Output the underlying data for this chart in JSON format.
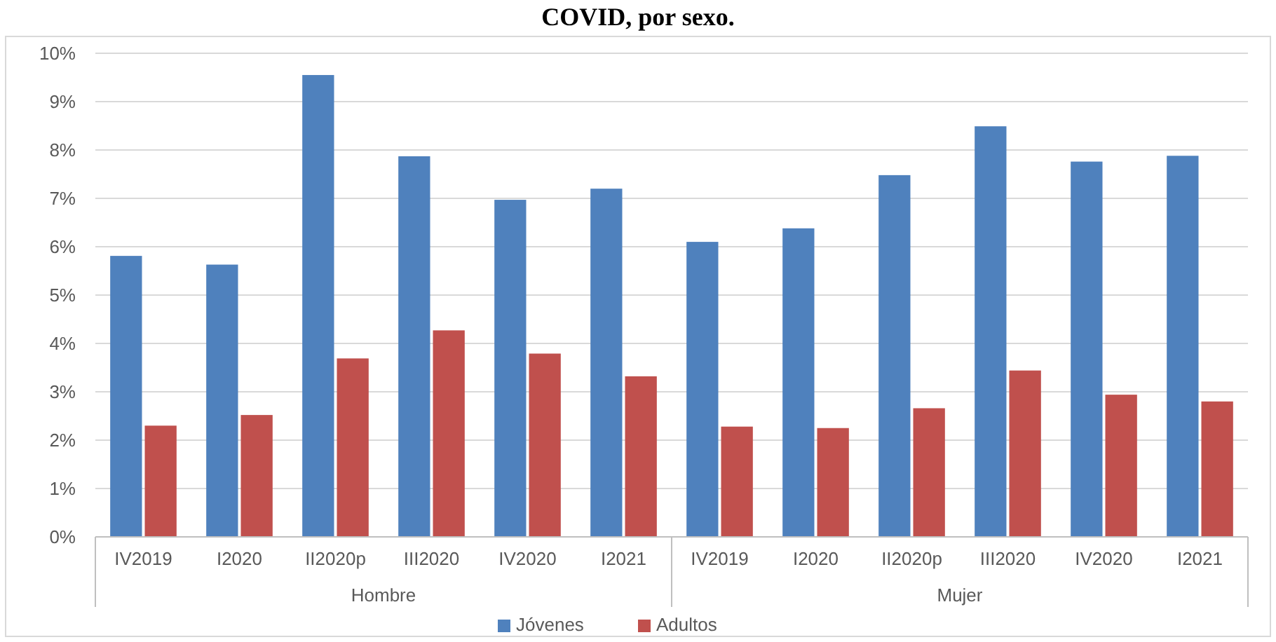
{
  "chart_data": {
    "type": "bar",
    "title": "COVID, por sexo.",
    "categories": [
      "IV2019",
      "I2020",
      "II2020p",
      "III2020",
      "IV2020",
      "I2021",
      "IV2019",
      "I2020",
      "II2020p",
      "III2020",
      "IV2020",
      "I2021"
    ],
    "series": [
      {
        "name": "Jóvenes",
        "color": "#4f81bd",
        "values": [
          5.81,
          5.63,
          9.55,
          7.87,
          6.97,
          7.2,
          6.1,
          6.38,
          7.48,
          8.49,
          7.76,
          7.88
        ]
      },
      {
        "name": "Adultos",
        "color": "#c0504d",
        "values": [
          2.3,
          2.52,
          3.69,
          4.27,
          3.79,
          3.32,
          2.28,
          2.25,
          2.66,
          3.44,
          2.94,
          2.8
        ]
      }
    ],
    "annotations": [
      "Hombre",
      "Mujer"
    ],
    "ylim": [
      0,
      10
    ],
    "yticks": [
      {
        "value": 0,
        "label": "0%"
      },
      {
        "value": 1,
        "label": "1%"
      },
      {
        "value": 2,
        "label": "2%"
      },
      {
        "value": 3,
        "label": "3%"
      },
      {
        "value": 4,
        "label": "4%"
      },
      {
        "value": 5,
        "label": "5%"
      },
      {
        "value": 6,
        "label": "6%"
      },
      {
        "value": 7,
        "label": "7%"
      },
      {
        "value": 8,
        "label": "8%"
      },
      {
        "value": 9,
        "label": "9%"
      },
      {
        "value": 10,
        "label": "10%"
      }
    ],
    "grid": "y",
    "legend": "bottom"
  }
}
